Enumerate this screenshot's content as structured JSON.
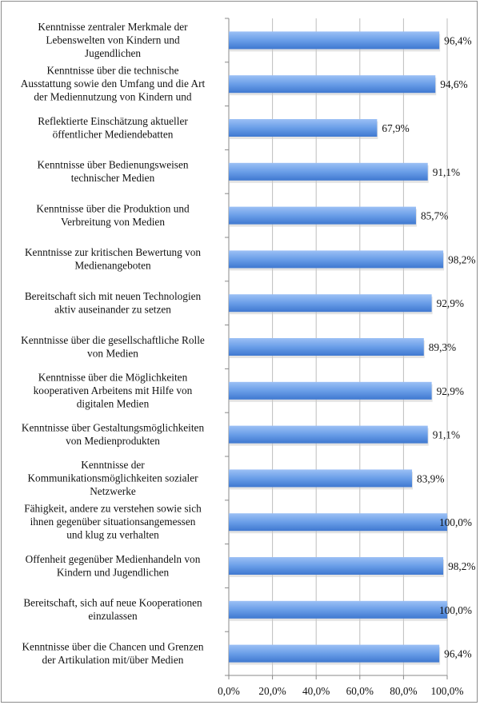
{
  "chart_data": {
    "type": "bar",
    "orientation": "horizontal",
    "categories": [
      [
        "Kenntnisse zentraler Merkmale der",
        "Lebenswelten von Kindern und",
        "Jugendlichen"
      ],
      [
        "Kenntnisse über die technische",
        "Ausstattung sowie den Umfang und die Art",
        "der Mediennutzung von Kindern und"
      ],
      [
        "Reflektierte Einschätzung  aktueller",
        "öffentlicher Mediendebatten"
      ],
      [
        "Kenntnisse über Bedienungsweisen",
        "technischer Medien"
      ],
      [
        "Kenntnisse über die Produktion und",
        "Verbreitung von Medien"
      ],
      [
        "Kenntnisse zur kritischen Bewertung von",
        "Medienangeboten"
      ],
      [
        "Bereitschaft sich mit neuen Technologien",
        "aktiv auseinander zu setzen"
      ],
      [
        "Kenntnisse über die gesellschaftliche Rolle",
        "von Medien"
      ],
      [
        "Kenntnisse über die Möglichkeiten",
        "kooperativen Arbeitens mit Hilfe von",
        "digitalen Medien"
      ],
      [
        "Kenntnisse über Gestaltungsmöglichkeiten",
        "von Medienprodukten"
      ],
      [
        "Kenntnisse der",
        "Kommunikationsmöglichkeiten sozialer",
        "Netzwerke"
      ],
      [
        "Fähigkeit, andere zu verstehen sowie sich",
        "ihnen gegenüber situationsangemessen",
        "und klug zu verhalten"
      ],
      [
        "Offenheit gegenüber Medienhandeln von",
        "Kindern und Jugendlichen"
      ],
      [
        "Bereitschaft, sich auf neue Kooperationen",
        "einzulassen"
      ],
      [
        "Kenntnisse über die Chancen und Grenzen",
        "der Artikulation mit/über Medien"
      ]
    ],
    "values": [
      96.4,
      94.6,
      67.9,
      91.1,
      85.7,
      98.2,
      92.9,
      89.3,
      92.9,
      91.1,
      83.9,
      100.0,
      98.2,
      100.0,
      96.4
    ],
    "value_labels": [
      "96,4%",
      "94,6%",
      "67,9%",
      "91,1%",
      "85,7%",
      "98,2%",
      "92,9%",
      "89,3%",
      "92,9%",
      "91,1%",
      "83,9%",
      "100,0%",
      "98,2%",
      "100,0%",
      "96,4%"
    ],
    "xlim": [
      0,
      100
    ],
    "x_ticks": [
      "0,0%",
      "20,0%",
      "40,0%",
      "60,0%",
      "80,0%",
      "100,0%"
    ],
    "grid": "vertical",
    "bar_color": "#5b8fe0",
    "title": "",
    "xlabel": "",
    "ylabel": ""
  }
}
